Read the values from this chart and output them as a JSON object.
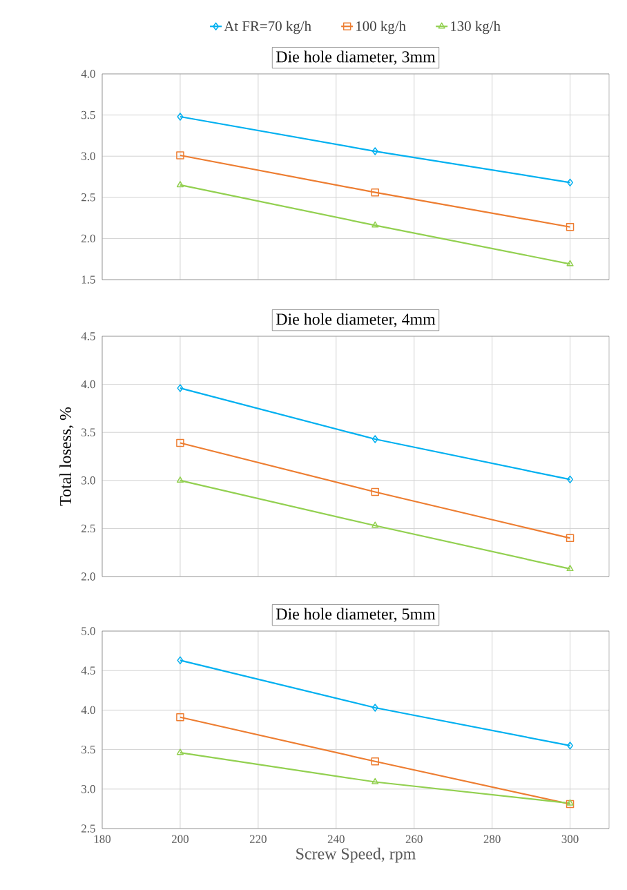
{
  "chart_data": [
    {
      "type": "line",
      "title": "Die hole diameter, 3mm",
      "x": [
        200,
        250,
        300
      ],
      "xlim": [
        180,
        310
      ],
      "xticks": [
        180,
        200,
        220,
        240,
        260,
        280,
        300
      ],
      "ylim": [
        1.5,
        4.0
      ],
      "yticks": [
        {
          "value": 1.5,
          "label": "1.5"
        },
        {
          "value": 2.0,
          "label": "2.0"
        },
        {
          "value": 2.5,
          "label": "2.5"
        },
        {
          "value": 3.0,
          "label": "3.0"
        },
        {
          "value": 3.5,
          "label": "3.5"
        },
        {
          "value": 4.0,
          "label": "4.0"
        }
      ],
      "tick_labels": "y",
      "grid": true,
      "legend": "top",
      "line_style": "solid",
      "series": [
        {
          "name": "At FR=70 kg/h",
          "color": "#00b0f0",
          "marker": "diamond",
          "values": [
            3.48,
            3.06,
            2.68
          ]
        },
        {
          "name": "100 kg/h",
          "color": "#ed7d31",
          "marker": "square",
          "values": [
            3.01,
            2.56,
            2.14
          ]
        },
        {
          "name": "130 kg/h",
          "color": "#92d050",
          "marker": "triangle",
          "values": [
            2.65,
            2.16,
            1.69
          ]
        }
      ]
    },
    {
      "type": "line",
      "title": "Die hole diameter, 4mm",
      "ylabel": "Total losess, %",
      "x": [
        200,
        250,
        300
      ],
      "xlim": [
        180,
        310
      ],
      "xticks": [
        180,
        200,
        220,
        240,
        260,
        280,
        300
      ],
      "ylim": [
        2.0,
        4.5
      ],
      "yticks": [
        {
          "value": 2.0,
          "label": "2.0"
        },
        {
          "value": 2.5,
          "label": "2.5"
        },
        {
          "value": 3.0,
          "label": "3.0"
        },
        {
          "value": 3.5,
          "label": "3.5"
        },
        {
          "value": 4.0,
          "label": "4.0"
        },
        {
          "value": 4.5,
          "label": "4.5"
        }
      ],
      "tick_labels": "y",
      "grid": true,
      "line_style": "solid",
      "series": [
        {
          "color": "#00b0f0",
          "marker": "diamond",
          "values": [
            3.96,
            3.43,
            3.01
          ]
        },
        {
          "color": "#ed7d31",
          "marker": "square",
          "values": [
            3.39,
            2.88,
            2.4
          ]
        },
        {
          "color": "#92d050",
          "marker": "triangle",
          "values": [
            3.0,
            2.53,
            2.08
          ]
        }
      ]
    },
    {
      "type": "line",
      "title": "Die hole diameter, 5mm",
      "xlabel": "Screw Speed, rpm",
      "x": [
        200,
        250,
        300
      ],
      "xlim": [
        180,
        310
      ],
      "xticks": [
        180,
        200,
        220,
        240,
        260,
        280,
        300
      ],
      "ylim": [
        2.5,
        5.0
      ],
      "yticks": [
        {
          "value": 2.5,
          "label": "2.5"
        },
        {
          "value": 3.0,
          "label": "3.0"
        },
        {
          "value": 3.5,
          "label": "3.5"
        },
        {
          "value": 4.0,
          "label": "4.0"
        },
        {
          "value": 4.5,
          "label": "4.5"
        },
        {
          "value": 5.0,
          "label": "5.0"
        }
      ],
      "grid": true,
      "line_style": "solid",
      "series": [
        {
          "color": "#00b0f0",
          "marker": "diamond",
          "values": [
            4.63,
            4.03,
            3.55
          ]
        },
        {
          "color": "#ed7d31",
          "marker": "square",
          "values": [
            3.91,
            3.35,
            2.81
          ]
        },
        {
          "color": "#92d050",
          "marker": "triangle",
          "values": [
            3.46,
            3.09,
            2.82
          ]
        }
      ]
    }
  ]
}
